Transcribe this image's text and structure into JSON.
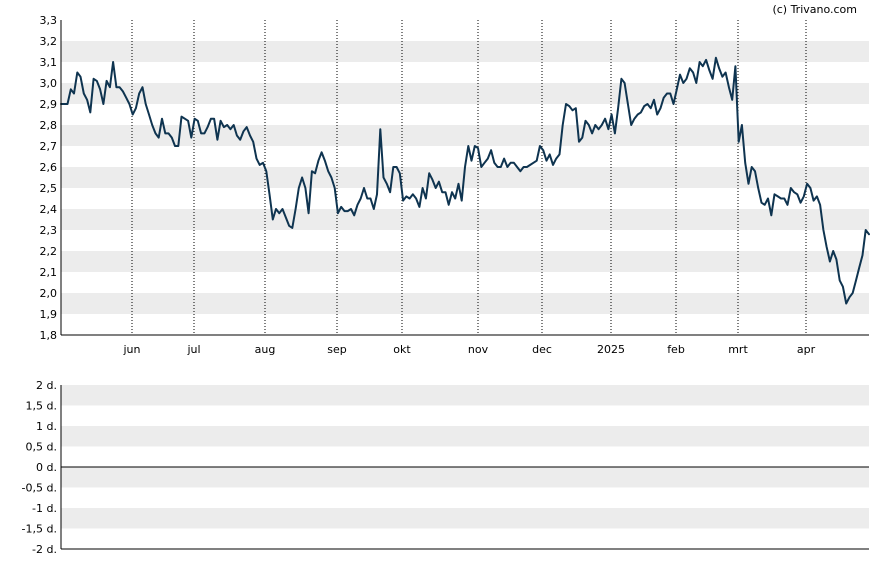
{
  "credit": "(c) Trivano.com",
  "colors": {
    "line": "#0f3450",
    "band": "#ececec",
    "grid": "#000000",
    "background": "#ffffff"
  },
  "chart_data": [
    {
      "type": "line",
      "title": "",
      "xlabel": "",
      "ylabel": "",
      "ylim": [
        1.8,
        3.3
      ],
      "yticks": [
        "1,8",
        "1,9",
        "2,0",
        "2,1",
        "2,2",
        "2,3",
        "2,4",
        "2,5",
        "2,6",
        "2,7",
        "2,8",
        "2,9",
        "3,0",
        "3,1",
        "3,2",
        "3,3"
      ],
      "xticks": [
        "jun",
        "jul",
        "aug",
        "sep",
        "okt",
        "nov",
        "dec",
        "2025",
        "feb",
        "mrt",
        "apr"
      ],
      "grid": "dotted vertical lines at month starts, alternating horizontal bands",
      "series": [
        {
          "values": [
            2.9,
            2.9,
            2.9,
            2.97,
            2.95,
            3.05,
            3.03,
            2.95,
            2.92,
            2.86,
            3.02,
            3.01,
            2.97,
            2.9,
            3.01,
            2.98,
            3.1,
            2.98,
            2.98,
            2.96,
            2.93,
            2.9,
            2.85,
            2.88,
            2.95,
            2.98,
            2.9,
            2.85,
            2.8,
            2.76,
            2.74,
            2.83,
            2.76,
            2.76,
            2.74,
            2.7,
            2.7,
            2.84,
            2.83,
            2.82,
            2.74,
            2.83,
            2.82,
            2.76,
            2.76,
            2.79,
            2.83,
            2.83,
            2.73,
            2.82,
            2.79,
            2.8,
            2.78,
            2.8,
            2.75,
            2.73,
            2.77,
            2.79,
            2.75,
            2.72,
            2.64,
            2.61,
            2.62,
            2.58,
            2.47,
            2.35,
            2.4,
            2.38,
            2.4,
            2.36,
            2.32,
            2.31,
            2.4,
            2.5,
            2.55,
            2.5,
            2.38,
            2.58,
            2.57,
            2.63,
            2.67,
            2.63,
            2.58,
            2.55,
            2.5,
            2.38,
            2.41,
            2.39,
            2.39,
            2.4,
            2.37,
            2.42,
            2.45,
            2.5,
            2.45,
            2.45,
            2.4,
            2.47,
            2.78,
            2.55,
            2.52,
            2.48,
            2.6,
            2.6,
            2.57,
            2.44,
            2.46,
            2.45,
            2.47,
            2.45,
            2.41,
            2.5,
            2.45,
            2.57,
            2.54,
            2.5,
            2.53,
            2.48,
            2.48,
            2.42,
            2.48,
            2.45,
            2.52,
            2.44,
            2.6,
            2.7,
            2.63,
            2.7,
            2.69,
            2.6,
            2.62,
            2.64,
            2.68,
            2.62,
            2.6,
            2.6,
            2.64,
            2.6,
            2.62,
            2.62,
            2.6,
            2.58,
            2.6,
            2.6,
            2.61,
            2.62,
            2.63,
            2.7,
            2.68,
            2.63,
            2.66,
            2.61,
            2.64,
            2.66,
            2.8,
            2.9,
            2.89,
            2.87,
            2.88,
            2.72,
            2.74,
            2.82,
            2.8,
            2.76,
            2.8,
            2.78,
            2.8,
            2.83,
            2.78,
            2.85,
            2.76,
            2.88,
            3.02,
            3.0,
            2.9,
            2.8,
            2.83,
            2.85,
            2.86,
            2.89,
            2.9,
            2.88,
            2.92,
            2.85,
            2.88,
            2.93,
            2.95,
            2.95,
            2.9,
            2.97,
            3.04,
            3.0,
            3.02,
            3.07,
            3.05,
            3.0,
            3.1,
            3.08,
            3.11,
            3.06,
            3.02,
            3.12,
            3.07,
            3.03,
            3.05,
            2.98,
            2.92,
            3.08,
            2.72,
            2.8,
            2.62,
            2.52,
            2.6,
            2.58,
            2.5,
            2.43,
            2.42,
            2.45,
            2.37,
            2.47,
            2.46,
            2.45,
            2.45,
            2.42,
            2.5,
            2.48,
            2.47,
            2.43,
            2.46,
            2.52,
            2.5,
            2.44,
            2.46,
            2.42,
            2.3,
            2.22,
            2.15,
            2.2,
            2.16,
            2.06,
            2.03,
            1.95,
            1.98,
            2.0,
            2.06,
            2.12,
            2.18,
            2.3,
            2.28
          ]
        }
      ]
    },
    {
      "type": "line",
      "title": "",
      "xlabel": "",
      "ylabel": "",
      "ylim": [
        -2,
        2
      ],
      "yticks": [
        "2 d.",
        "1,5 d.",
        "1 d.",
        "0,5 d.",
        "0 d.",
        "-0,5 d.",
        "-1 d.",
        "-1,5 d.",
        "-2 d."
      ],
      "grid": "alternating horizontal bands, solid zero line",
      "series": []
    }
  ]
}
